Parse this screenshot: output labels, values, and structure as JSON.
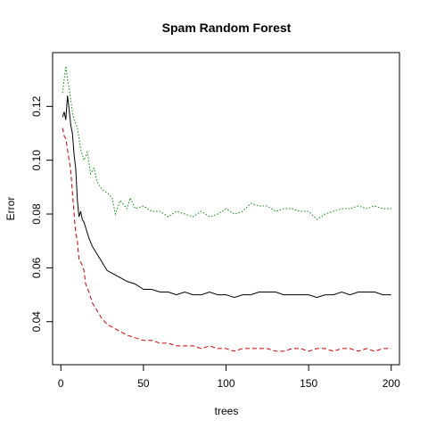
{
  "chart_data": {
    "type": "line",
    "title": "Spam Random Forest",
    "xlabel": "trees",
    "ylabel": "Error",
    "xlim": [
      -5,
      205
    ],
    "ylim": [
      0.024,
      0.14
    ],
    "xticks": [
      0,
      50,
      100,
      150,
      200
    ],
    "xtick_labels": [
      "0",
      "50",
      "100",
      "150",
      "200"
    ],
    "yticks": [
      0.04,
      0.06,
      0.08,
      0.1,
      0.12
    ],
    "ytick_labels": [
      "0.04",
      "0.06",
      "0.08",
      "0.10",
      "0.12"
    ],
    "grid": false,
    "legend": "none",
    "series": [
      {
        "color": "#008b00",
        "style": "dotted",
        "x": [
          1,
          3,
          4,
          5,
          7,
          8,
          10,
          12,
          14,
          16,
          18,
          20,
          22,
          25,
          28,
          31,
          33,
          36,
          40,
          42,
          45,
          50,
          55,
          60,
          65,
          70,
          75,
          80,
          85,
          90,
          95,
          100,
          105,
          110,
          115,
          120,
          125,
          130,
          135,
          140,
          145,
          150,
          155,
          160,
          165,
          170,
          175,
          180,
          185,
          190,
          195,
          200
        ],
        "y": [
          0.125,
          0.135,
          0.13,
          0.127,
          0.118,
          0.115,
          0.112,
          0.104,
          0.1,
          0.103,
          0.095,
          0.097,
          0.092,
          0.089,
          0.088,
          0.086,
          0.08,
          0.085,
          0.082,
          0.086,
          0.082,
          0.083,
          0.081,
          0.081,
          0.079,
          0.081,
          0.08,
          0.079,
          0.081,
          0.079,
          0.08,
          0.082,
          0.08,
          0.081,
          0.084,
          0.083,
          0.083,
          0.081,
          0.082,
          0.082,
          0.081,
          0.081,
          0.078,
          0.08,
          0.081,
          0.082,
          0.082,
          0.083,
          0.082,
          0.083,
          0.082,
          0.082
        ]
      },
      {
        "color": "#000000",
        "style": "solid",
        "x": [
          1,
          2,
          3,
          4,
          5,
          6,
          7,
          8,
          9,
          10,
          11,
          12,
          13,
          14,
          15,
          17,
          19,
          21,
          23,
          25,
          28,
          31,
          34,
          37,
          40,
          45,
          50,
          55,
          60,
          65,
          70,
          75,
          80,
          85,
          90,
          95,
          100,
          105,
          110,
          115,
          120,
          125,
          130,
          135,
          140,
          145,
          150,
          155,
          160,
          165,
          170,
          175,
          180,
          185,
          190,
          195,
          200
        ],
        "y": [
          0.116,
          0.118,
          0.115,
          0.124,
          0.119,
          0.113,
          0.11,
          0.102,
          0.097,
          0.085,
          0.079,
          0.081,
          0.078,
          0.077,
          0.075,
          0.071,
          0.068,
          0.066,
          0.064,
          0.062,
          0.059,
          0.058,
          0.057,
          0.056,
          0.055,
          0.054,
          0.052,
          0.052,
          0.051,
          0.051,
          0.05,
          0.051,
          0.05,
          0.05,
          0.051,
          0.05,
          0.05,
          0.049,
          0.05,
          0.05,
          0.051,
          0.051,
          0.051,
          0.05,
          0.05,
          0.05,
          0.05,
          0.049,
          0.05,
          0.05,
          0.051,
          0.05,
          0.051,
          0.051,
          0.051,
          0.05,
          0.05
        ]
      },
      {
        "color": "#cc0000",
        "style": "dashed",
        "x": [
          1,
          2,
          3,
          4,
          5,
          6,
          7,
          8,
          9,
          10,
          11,
          12,
          13,
          14,
          15,
          17,
          19,
          21,
          23,
          25,
          28,
          31,
          34,
          37,
          40,
          45,
          50,
          55,
          60,
          65,
          70,
          75,
          80,
          85,
          90,
          95,
          100,
          105,
          110,
          115,
          120,
          125,
          130,
          135,
          140,
          145,
          150,
          155,
          160,
          165,
          170,
          175,
          180,
          185,
          190,
          195,
          200
        ],
        "y": [
          0.112,
          0.109,
          0.108,
          0.104,
          0.1,
          0.096,
          0.088,
          0.08,
          0.073,
          0.07,
          0.063,
          0.062,
          0.061,
          0.059,
          0.054,
          0.051,
          0.047,
          0.045,
          0.043,
          0.041,
          0.039,
          0.038,
          0.037,
          0.036,
          0.035,
          0.034,
          0.033,
          0.033,
          0.032,
          0.032,
          0.031,
          0.031,
          0.031,
          0.03,
          0.031,
          0.03,
          0.03,
          0.029,
          0.03,
          0.03,
          0.03,
          0.03,
          0.029,
          0.029,
          0.03,
          0.03,
          0.029,
          0.03,
          0.03,
          0.029,
          0.03,
          0.03,
          0.029,
          0.03,
          0.029,
          0.03,
          0.03
        ]
      }
    ]
  }
}
